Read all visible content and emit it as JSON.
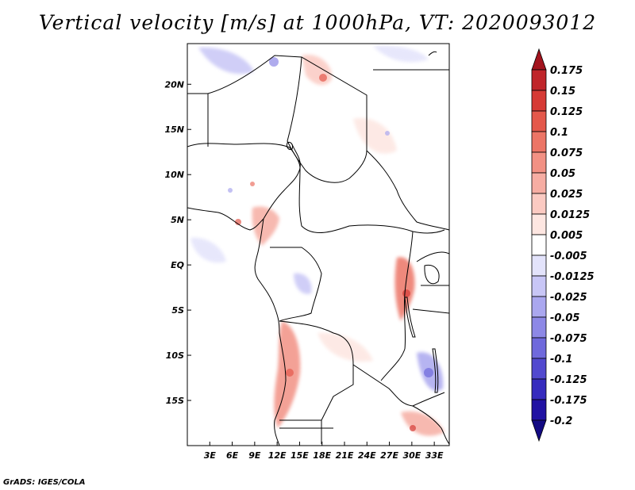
{
  "title": "Vertical velocity [m/s] at 1000hPa, VT: 2020093012",
  "credit": "GrADS: IGES/COLA",
  "map": {
    "lat_labels": [
      "20N",
      "15N",
      "10N",
      "5N",
      "EQ",
      "5S",
      "10S",
      "15S"
    ],
    "lat_values": [
      20,
      15,
      10,
      5,
      0,
      -5,
      -10,
      -15
    ],
    "lon_labels": [
      "3E",
      "6E",
      "9E",
      "12E",
      "15E",
      "18E",
      "21E",
      "24E",
      "27E",
      "30E",
      "33E"
    ],
    "lon_values": [
      3,
      6,
      9,
      12,
      15,
      18,
      21,
      24,
      27,
      30,
      33
    ],
    "lon_range": [
      0,
      35
    ],
    "lat_range": [
      -20,
      24.5
    ]
  },
  "colorbar": {
    "labels": [
      "0.175",
      "0.15",
      "0.125",
      "0.1",
      "0.075",
      "0.05",
      "0.025",
      "0.0125",
      "0.005",
      "-0.005",
      "-0.0125",
      "-0.025",
      "-0.05",
      "-0.075",
      "-0.1",
      "-0.125",
      "-0.175",
      "-0.2"
    ],
    "colors": [
      "#a3141e",
      "#c0252a",
      "#d63a35",
      "#e4584b",
      "#ec7566",
      "#f29184",
      "#f6ada3",
      "#fbcac2",
      "#fde6e1",
      "#ffffff",
      "#e3e3fb",
      "#c8c6f6",
      "#aaa7ef",
      "#8d88e6",
      "#6f69dc",
      "#5249cf",
      "#362bbe",
      "#2112a3",
      "#130a83"
    ]
  }
}
